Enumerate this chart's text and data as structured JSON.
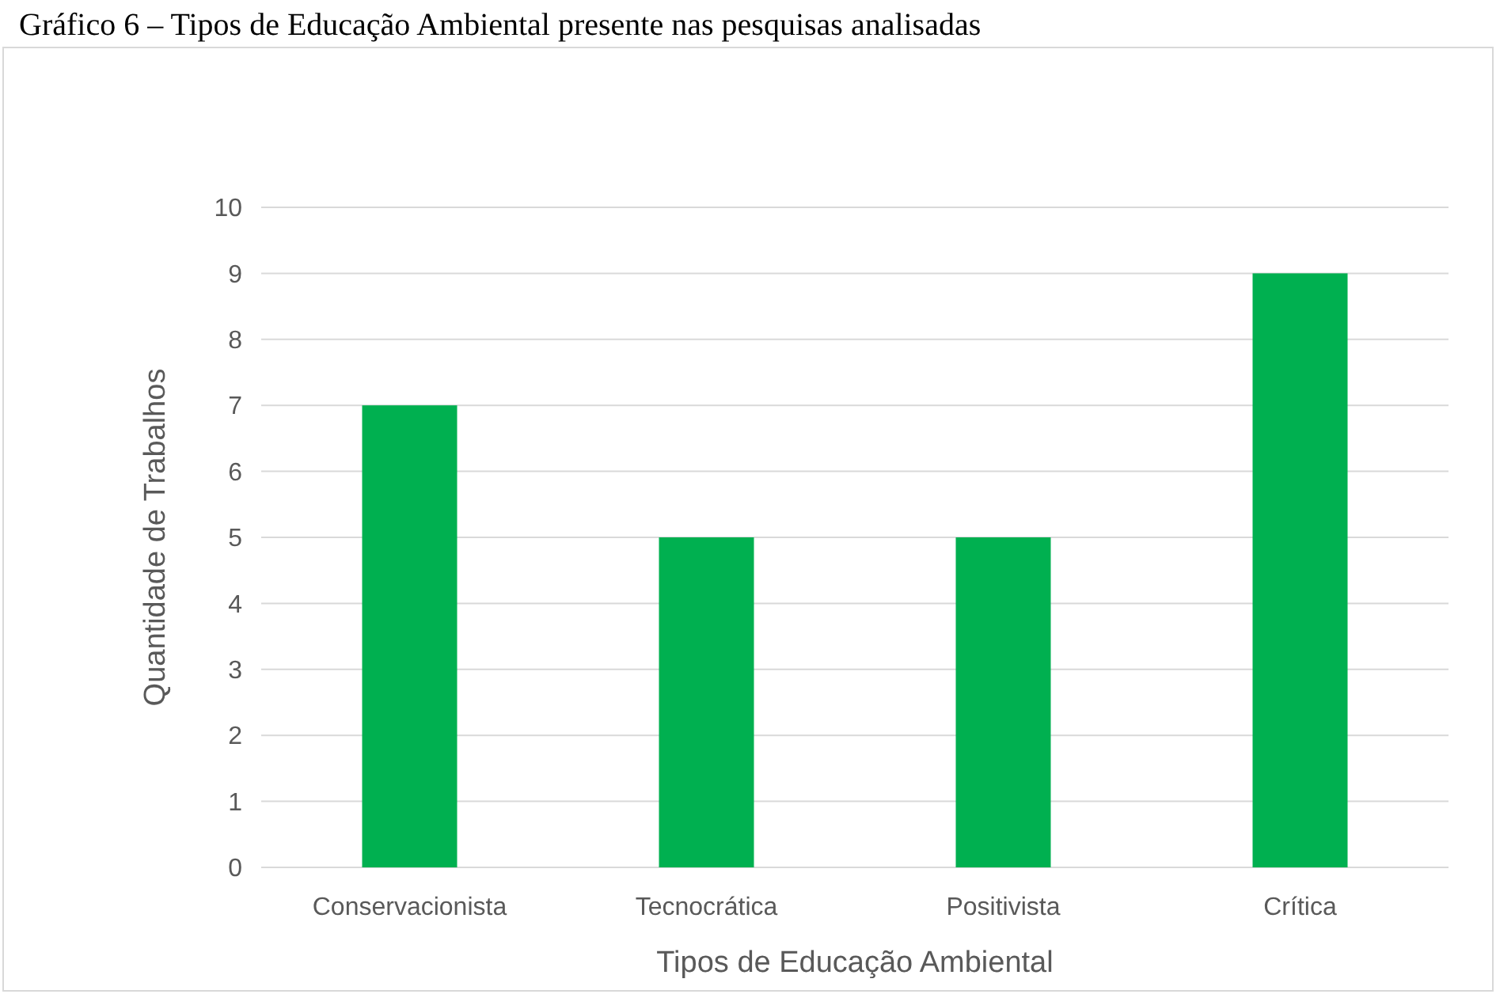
{
  "chart_data": {
    "type": "bar",
    "title": "Gráfico 6 – Tipos de Educação Ambiental presente nas pesquisas analisadas",
    "xlabel": "Tipos de Educação Ambiental",
    "ylabel": "Quantidade de Trabalhos",
    "categories": [
      "Conservacionista",
      "Tecnocrática",
      "Positivista",
      "Crítica"
    ],
    "values": [
      7,
      5,
      5,
      9
    ],
    "color": "#00b050",
    "ylim": [
      0,
      10
    ],
    "yticks": [
      0,
      1,
      2,
      3,
      4,
      5,
      6,
      7,
      8,
      9,
      10
    ],
    "grid": "y"
  }
}
